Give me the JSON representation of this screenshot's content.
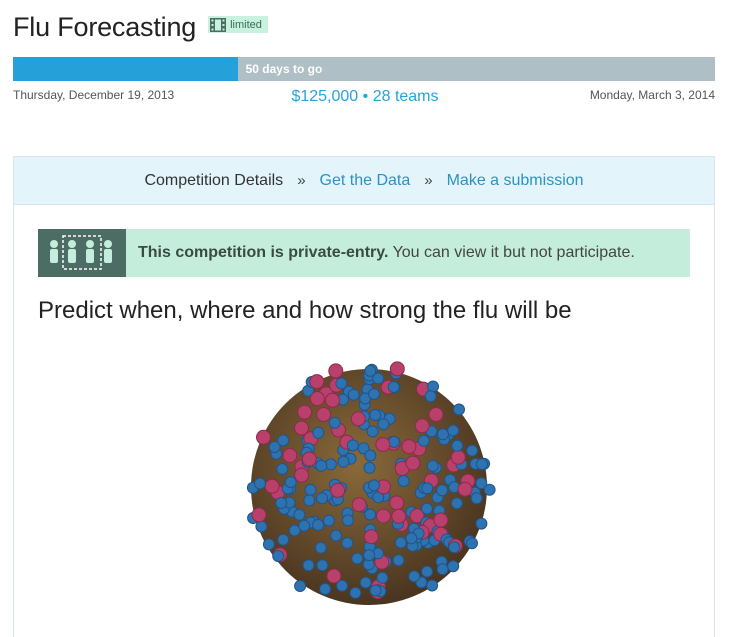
{
  "header": {
    "title": "Flu Forecasting",
    "badge": "limited",
    "badge_icon": "film-strip-icon"
  },
  "progress": {
    "label": "50 days to go",
    "fraction_elapsed": 0.32,
    "start_date": "Thursday, December 19, 2013",
    "end_date": "Monday, March 3, 2014",
    "prize_text": "$125,000 • 28 teams",
    "colors": {
      "fill": "#26a0d8",
      "track": "#aebfc6"
    }
  },
  "nav": {
    "tabs": [
      {
        "label": "Competition Details",
        "active": true
      },
      {
        "label": "Get the Data",
        "active": false
      },
      {
        "label": "Make a submission",
        "active": false
      }
    ],
    "separator": "»"
  },
  "notice": {
    "icon": "private-entry-people-icon",
    "bold": "This competition is private-entry.",
    "text": " You can view it but not participate."
  },
  "main": {
    "heading": "Predict when, where and how strong the flu will be",
    "image": "influenza-virus-illustration"
  }
}
